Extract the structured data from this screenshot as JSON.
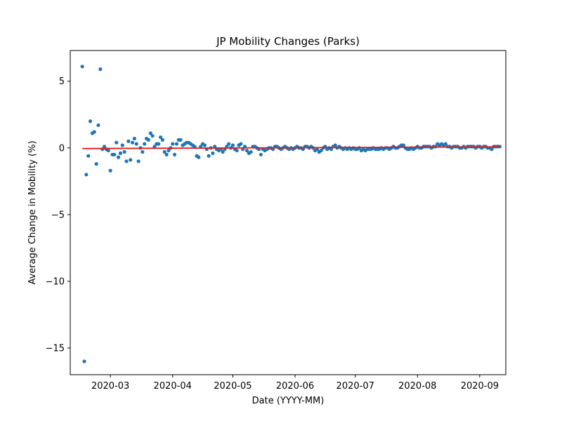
{
  "chart_data": {
    "type": "scatter",
    "title": "JP Mobility Changes (Parks)",
    "xlabel": "Date (YYYY-MM)",
    "ylabel": "Average Change in Mobility (%)",
    "x_axis": "date",
    "xlim": [
      "2020-02-10",
      "2020-09-14"
    ],
    "ylim": [
      -17,
      7.3
    ],
    "x_ticks": [
      "2020-03",
      "2020-04",
      "2020-05",
      "2020-06",
      "2020-07",
      "2020-08",
      "2020-09"
    ],
    "y_ticks": [
      5,
      0,
      -5,
      -10,
      -15
    ],
    "y_tick_labels": [
      "5",
      "0",
      "−5",
      "−10",
      "−15"
    ],
    "grid": false,
    "series": [
      {
        "kind": "points",
        "color": "#1f77b4",
        "points": [
          [
            "2020-02-16",
            6.1
          ],
          [
            "2020-02-17",
            -16.0
          ],
          [
            "2020-02-18",
            -2.0
          ],
          [
            "2020-02-19",
            -0.6
          ],
          [
            "2020-02-20",
            2.0
          ],
          [
            "2020-02-21",
            1.1
          ],
          [
            "2020-02-22",
            1.2
          ],
          [
            "2020-02-23",
            -1.2
          ],
          [
            "2020-02-24",
            1.7
          ],
          [
            "2020-02-25",
            5.9
          ],
          [
            "2020-02-26",
            -0.1
          ],
          [
            "2020-02-27",
            0.1
          ],
          [
            "2020-02-28",
            -0.1
          ],
          [
            "2020-02-29",
            -0.2
          ],
          [
            "2020-03-01",
            -1.7
          ],
          [
            "2020-03-02",
            -0.5
          ],
          [
            "2020-03-03",
            -0.5
          ],
          [
            "2020-03-04",
            0.4
          ],
          [
            "2020-03-05",
            -0.7
          ],
          [
            "2020-03-06",
            -0.4
          ],
          [
            "2020-03-07",
            0.2
          ],
          [
            "2020-03-08",
            -0.3
          ],
          [
            "2020-03-09",
            -1.0
          ],
          [
            "2020-03-10",
            0.5
          ],
          [
            "2020-03-11",
            -0.9
          ],
          [
            "2020-03-12",
            0.4
          ],
          [
            "2020-03-13",
            0.7
          ],
          [
            "2020-03-14",
            0.3
          ],
          [
            "2020-03-15",
            -1.0
          ],
          [
            "2020-03-16",
            0.0
          ],
          [
            "2020-03-17",
            -0.3
          ],
          [
            "2020-03-18",
            0.3
          ],
          [
            "2020-03-19",
            0.7
          ],
          [
            "2020-03-20",
            0.6
          ],
          [
            "2020-03-21",
            1.1
          ],
          [
            "2020-03-22",
            0.9
          ],
          [
            "2020-03-23",
            0.1
          ],
          [
            "2020-03-24",
            0.3
          ],
          [
            "2020-03-25",
            0.3
          ],
          [
            "2020-03-26",
            0.8
          ],
          [
            "2020-03-27",
            0.6
          ],
          [
            "2020-03-28",
            -0.3
          ],
          [
            "2020-03-29",
            -0.5
          ],
          [
            "2020-03-30",
            -0.2
          ],
          [
            "2020-03-31",
            0.0
          ],
          [
            "2020-04-01",
            0.3
          ],
          [
            "2020-04-02",
            -0.5
          ],
          [
            "2020-04-03",
            0.3
          ],
          [
            "2020-04-04",
            0.6
          ],
          [
            "2020-04-05",
            0.6
          ],
          [
            "2020-04-06",
            0.2
          ],
          [
            "2020-04-07",
            0.3
          ],
          [
            "2020-04-08",
            0.4
          ],
          [
            "2020-04-09",
            0.4
          ],
          [
            "2020-04-10",
            0.3
          ],
          [
            "2020-04-11",
            0.2
          ],
          [
            "2020-04-12",
            0.1
          ],
          [
            "2020-04-13",
            -0.6
          ],
          [
            "2020-04-14",
            -0.7
          ],
          [
            "2020-04-15",
            0.1
          ],
          [
            "2020-04-16",
            0.3
          ],
          [
            "2020-04-17",
            0.2
          ],
          [
            "2020-04-18",
            -0.1
          ],
          [
            "2020-04-19",
            -0.6
          ],
          [
            "2020-04-20",
            0.0
          ],
          [
            "2020-04-21",
            -0.4
          ],
          [
            "2020-04-22",
            0.1
          ],
          [
            "2020-04-23",
            -0.1
          ],
          [
            "2020-04-24",
            -0.2
          ],
          [
            "2020-04-25",
            -0.1
          ],
          [
            "2020-04-26",
            -0.3
          ],
          [
            "2020-04-27",
            -0.1
          ],
          [
            "2020-04-28",
            0.1
          ],
          [
            "2020-04-29",
            0.3
          ],
          [
            "2020-04-30",
            0.0
          ],
          [
            "2020-05-01",
            0.2
          ],
          [
            "2020-05-02",
            -0.1
          ],
          [
            "2020-05-03",
            -0.2
          ],
          [
            "2020-05-04",
            0.2
          ],
          [
            "2020-05-05",
            0.3
          ],
          [
            "2020-05-06",
            -0.1
          ],
          [
            "2020-05-07",
            0.1
          ],
          [
            "2020-05-08",
            -0.2
          ],
          [
            "2020-05-09",
            -0.4
          ],
          [
            "2020-05-10",
            -0.3
          ],
          [
            "2020-05-11",
            0.1
          ],
          [
            "2020-05-12",
            0.1
          ],
          [
            "2020-05-13",
            0.0
          ],
          [
            "2020-05-14",
            -0.1
          ],
          [
            "2020-05-15",
            -0.5
          ],
          [
            "2020-05-16",
            -0.1
          ],
          [
            "2020-05-17",
            -0.2
          ],
          [
            "2020-05-18",
            -0.1
          ],
          [
            "2020-05-19",
            0.0
          ],
          [
            "2020-05-20",
            0.0
          ],
          [
            "2020-05-21",
            -0.1
          ],
          [
            "2020-05-22",
            0.1
          ],
          [
            "2020-05-23",
            0.1
          ],
          [
            "2020-05-24",
            0.0
          ],
          [
            "2020-05-25",
            -0.1
          ],
          [
            "2020-05-26",
            0.0
          ],
          [
            "2020-05-27",
            0.1
          ],
          [
            "2020-05-28",
            0.0
          ],
          [
            "2020-05-29",
            -0.1
          ],
          [
            "2020-05-30",
            0.0
          ],
          [
            "2020-05-31",
            -0.1
          ],
          [
            "2020-06-01",
            0.0
          ],
          [
            "2020-06-02",
            0.1
          ],
          [
            "2020-06-03",
            0.0
          ],
          [
            "2020-06-04",
            0.0
          ],
          [
            "2020-06-05",
            -0.1
          ],
          [
            "2020-06-06",
            0.1
          ],
          [
            "2020-06-07",
            0.1
          ],
          [
            "2020-06-08",
            0.0
          ],
          [
            "2020-06-09",
            0.1
          ],
          [
            "2020-06-10",
            0.0
          ],
          [
            "2020-06-11",
            -0.2
          ],
          [
            "2020-06-12",
            -0.1
          ],
          [
            "2020-06-13",
            -0.3
          ],
          [
            "2020-06-14",
            -0.2
          ],
          [
            "2020-06-15",
            0.0
          ],
          [
            "2020-06-16",
            0.1
          ],
          [
            "2020-06-17",
            -0.1
          ],
          [
            "2020-06-18",
            0.0
          ],
          [
            "2020-06-19",
            -0.1
          ],
          [
            "2020-06-20",
            0.1
          ],
          [
            "2020-06-21",
            0.2
          ],
          [
            "2020-06-22",
            0.0
          ],
          [
            "2020-06-23",
            0.1
          ],
          [
            "2020-06-24",
            0.0
          ],
          [
            "2020-06-25",
            -0.1
          ],
          [
            "2020-06-26",
            0.0
          ],
          [
            "2020-06-27",
            -0.1
          ],
          [
            "2020-06-28",
            0.0
          ],
          [
            "2020-06-29",
            -0.1
          ],
          [
            "2020-06-30",
            0.0
          ],
          [
            "2020-07-01",
            -0.1
          ],
          [
            "2020-07-02",
            -0.1
          ],
          [
            "2020-07-03",
            0.0
          ],
          [
            "2020-07-04",
            -0.2
          ],
          [
            "2020-07-05",
            -0.1
          ],
          [
            "2020-07-06",
            -0.2
          ],
          [
            "2020-07-07",
            -0.1
          ],
          [
            "2020-07-08",
            -0.1
          ],
          [
            "2020-07-09",
            -0.1
          ],
          [
            "2020-07-10",
            0.0
          ],
          [
            "2020-07-11",
            -0.1
          ],
          [
            "2020-07-12",
            -0.1
          ],
          [
            "2020-07-13",
            -0.1
          ],
          [
            "2020-07-14",
            0.0
          ],
          [
            "2020-07-15",
            -0.1
          ],
          [
            "2020-07-16",
            0.0
          ],
          [
            "2020-07-17",
            0.0
          ],
          [
            "2020-07-18",
            -0.1
          ],
          [
            "2020-07-19",
            0.0
          ],
          [
            "2020-07-20",
            0.1
          ],
          [
            "2020-07-21",
            0.0
          ],
          [
            "2020-07-22",
            0.0
          ],
          [
            "2020-07-23",
            0.1
          ],
          [
            "2020-07-24",
            0.2
          ],
          [
            "2020-07-25",
            0.2
          ],
          [
            "2020-07-26",
            0.0
          ],
          [
            "2020-07-27",
            -0.1
          ],
          [
            "2020-07-28",
            -0.1
          ],
          [
            "2020-07-29",
            0.0
          ],
          [
            "2020-07-30",
            -0.1
          ],
          [
            "2020-07-31",
            0.0
          ],
          [
            "2020-08-01",
            0.1
          ],
          [
            "2020-08-02",
            0.0
          ],
          [
            "2020-08-03",
            0.0
          ],
          [
            "2020-08-04",
            0.1
          ],
          [
            "2020-08-05",
            0.1
          ],
          [
            "2020-08-06",
            0.1
          ],
          [
            "2020-08-07",
            0.1
          ],
          [
            "2020-08-08",
            0.0
          ],
          [
            "2020-08-09",
            0.1
          ],
          [
            "2020-08-10",
            0.1
          ],
          [
            "2020-08-11",
            0.3
          ],
          [
            "2020-08-12",
            0.2
          ],
          [
            "2020-08-13",
            0.3
          ],
          [
            "2020-08-14",
            0.2
          ],
          [
            "2020-08-15",
            0.3
          ],
          [
            "2020-08-16",
            0.1
          ],
          [
            "2020-08-17",
            0.1
          ],
          [
            "2020-08-18",
            0.0
          ],
          [
            "2020-08-19",
            0.1
          ],
          [
            "2020-08-20",
            0.1
          ],
          [
            "2020-08-21",
            0.1
          ],
          [
            "2020-08-22",
            0.0
          ],
          [
            "2020-08-23",
            0.0
          ],
          [
            "2020-08-24",
            0.1
          ],
          [
            "2020-08-25",
            0.0
          ],
          [
            "2020-08-26",
            0.1
          ],
          [
            "2020-08-27",
            0.1
          ],
          [
            "2020-08-28",
            0.1
          ],
          [
            "2020-08-29",
            0.1
          ],
          [
            "2020-08-30",
            0.0
          ],
          [
            "2020-08-31",
            0.1
          ],
          [
            "2020-09-01",
            0.1
          ],
          [
            "2020-09-02",
            0.0
          ],
          [
            "2020-09-03",
            0.1
          ],
          [
            "2020-09-04",
            0.1
          ],
          [
            "2020-09-05",
            0.0
          ],
          [
            "2020-09-06",
            0.0
          ],
          [
            "2020-09-07",
            -0.1
          ],
          [
            "2020-09-08",
            0.1
          ],
          [
            "2020-09-09",
            0.1
          ],
          [
            "2020-09-10",
            0.1
          ],
          [
            "2020-09-11",
            0.1
          ]
        ]
      },
      {
        "kind": "trend-line",
        "color": "#e31a1c",
        "points": [
          [
            "2020-02-16",
            -0.05
          ],
          [
            "2020-09-11",
            0.08
          ]
        ]
      }
    ]
  }
}
